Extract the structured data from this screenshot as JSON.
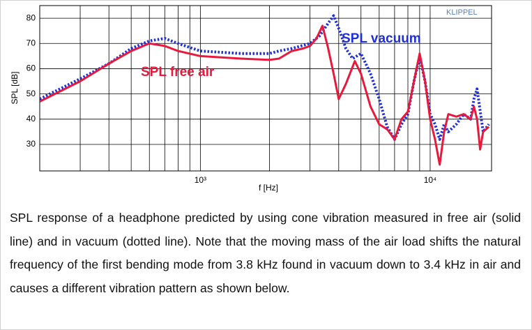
{
  "chart_data": {
    "type": "line",
    "xlabel": "f [Hz]",
    "ylabel": "SPL [dB]",
    "xscale": "log",
    "xlim": [
      200,
      18500
    ],
    "ylim": [
      19.5,
      85
    ],
    "xticks": [
      {
        "value": 1000,
        "label": "10³"
      },
      {
        "value": 10000,
        "label": "10⁴"
      }
    ],
    "minor_xticks": [
      200,
      300,
      400,
      500,
      600,
      700,
      800,
      900,
      2000,
      3000,
      4000,
      5000,
      6000,
      7000,
      8000,
      9000
    ],
    "yticks": [
      30,
      40,
      50,
      60,
      70,
      80
    ],
    "grid": true,
    "annotations": [
      {
        "text": "SPL free air",
        "color": "#e8193c"
      },
      {
        "text": "SPL vacuum",
        "color": "#1f2fd6"
      },
      {
        "text": "KLIPPEL",
        "color": "#5a7fc0"
      }
    ],
    "series": [
      {
        "name": "SPL free air",
        "color": "#e8193c",
        "style": "solid",
        "x": [
          200,
          300,
          400,
          500,
          600,
          700,
          800,
          1000,
          1500,
          2000,
          2200,
          2500,
          2800,
          3000,
          3200,
          3400,
          3600,
          3800,
          4000,
          4300,
          4700,
          5000,
          5500,
          6000,
          6500,
          7000,
          7500,
          8000,
          8500,
          9000,
          9500,
          10000,
          10500,
          11000,
          11500,
          12000,
          13000,
          14000,
          15000,
          15500,
          16000,
          16500,
          17000,
          18000
        ],
        "values": [
          47,
          55,
          62,
          67,
          70,
          69,
          67,
          65,
          64,
          63.5,
          64,
          67,
          68,
          69,
          72,
          77,
          68,
          58,
          48,
          54,
          63,
          58,
          45,
          38,
          36,
          32,
          40,
          43,
          55,
          66,
          55,
          40,
          32,
          22,
          35,
          42,
          41,
          42,
          40,
          45,
          40,
          28,
          35,
          37
        ]
      },
      {
        "name": "SPL vacuum",
        "color": "#1f2fd6",
        "style": "dotted",
        "x": [
          200,
          300,
          400,
          500,
          600,
          700,
          800,
          1000,
          1500,
          2000,
          2200,
          2500,
          3000,
          3300,
          3600,
          3800,
          4000,
          4300,
          4600,
          5000,
          5500,
          6000,
          6500,
          7000,
          7500,
          8000,
          8500,
          9000,
          9500,
          10000,
          10500,
          11000,
          11500,
          12000,
          13000,
          14000,
          15000,
          15500,
          16000,
          17000,
          18000
        ],
        "values": [
          48,
          56,
          62,
          68,
          71,
          72,
          70,
          67,
          66,
          66,
          67,
          68,
          70,
          73,
          78,
          81,
          76,
          68,
          64,
          66,
          58,
          48,
          37,
          32,
          38,
          42,
          55,
          65,
          55,
          42,
          38,
          32,
          38,
          35,
          38,
          42,
          40,
          48,
          52,
          35,
          38
        ]
      }
    ]
  },
  "caption": "SPL response of a headphone predicted by using cone vibration measured in free air (solid line) and in vacuum (dotted line). Note that the moving mass of the air load shifts the natural frequency of the first bending mode from 3.8 kHz found in vacuum down to 3.4 kHz in air and causes a different vibration pattern as shown below."
}
